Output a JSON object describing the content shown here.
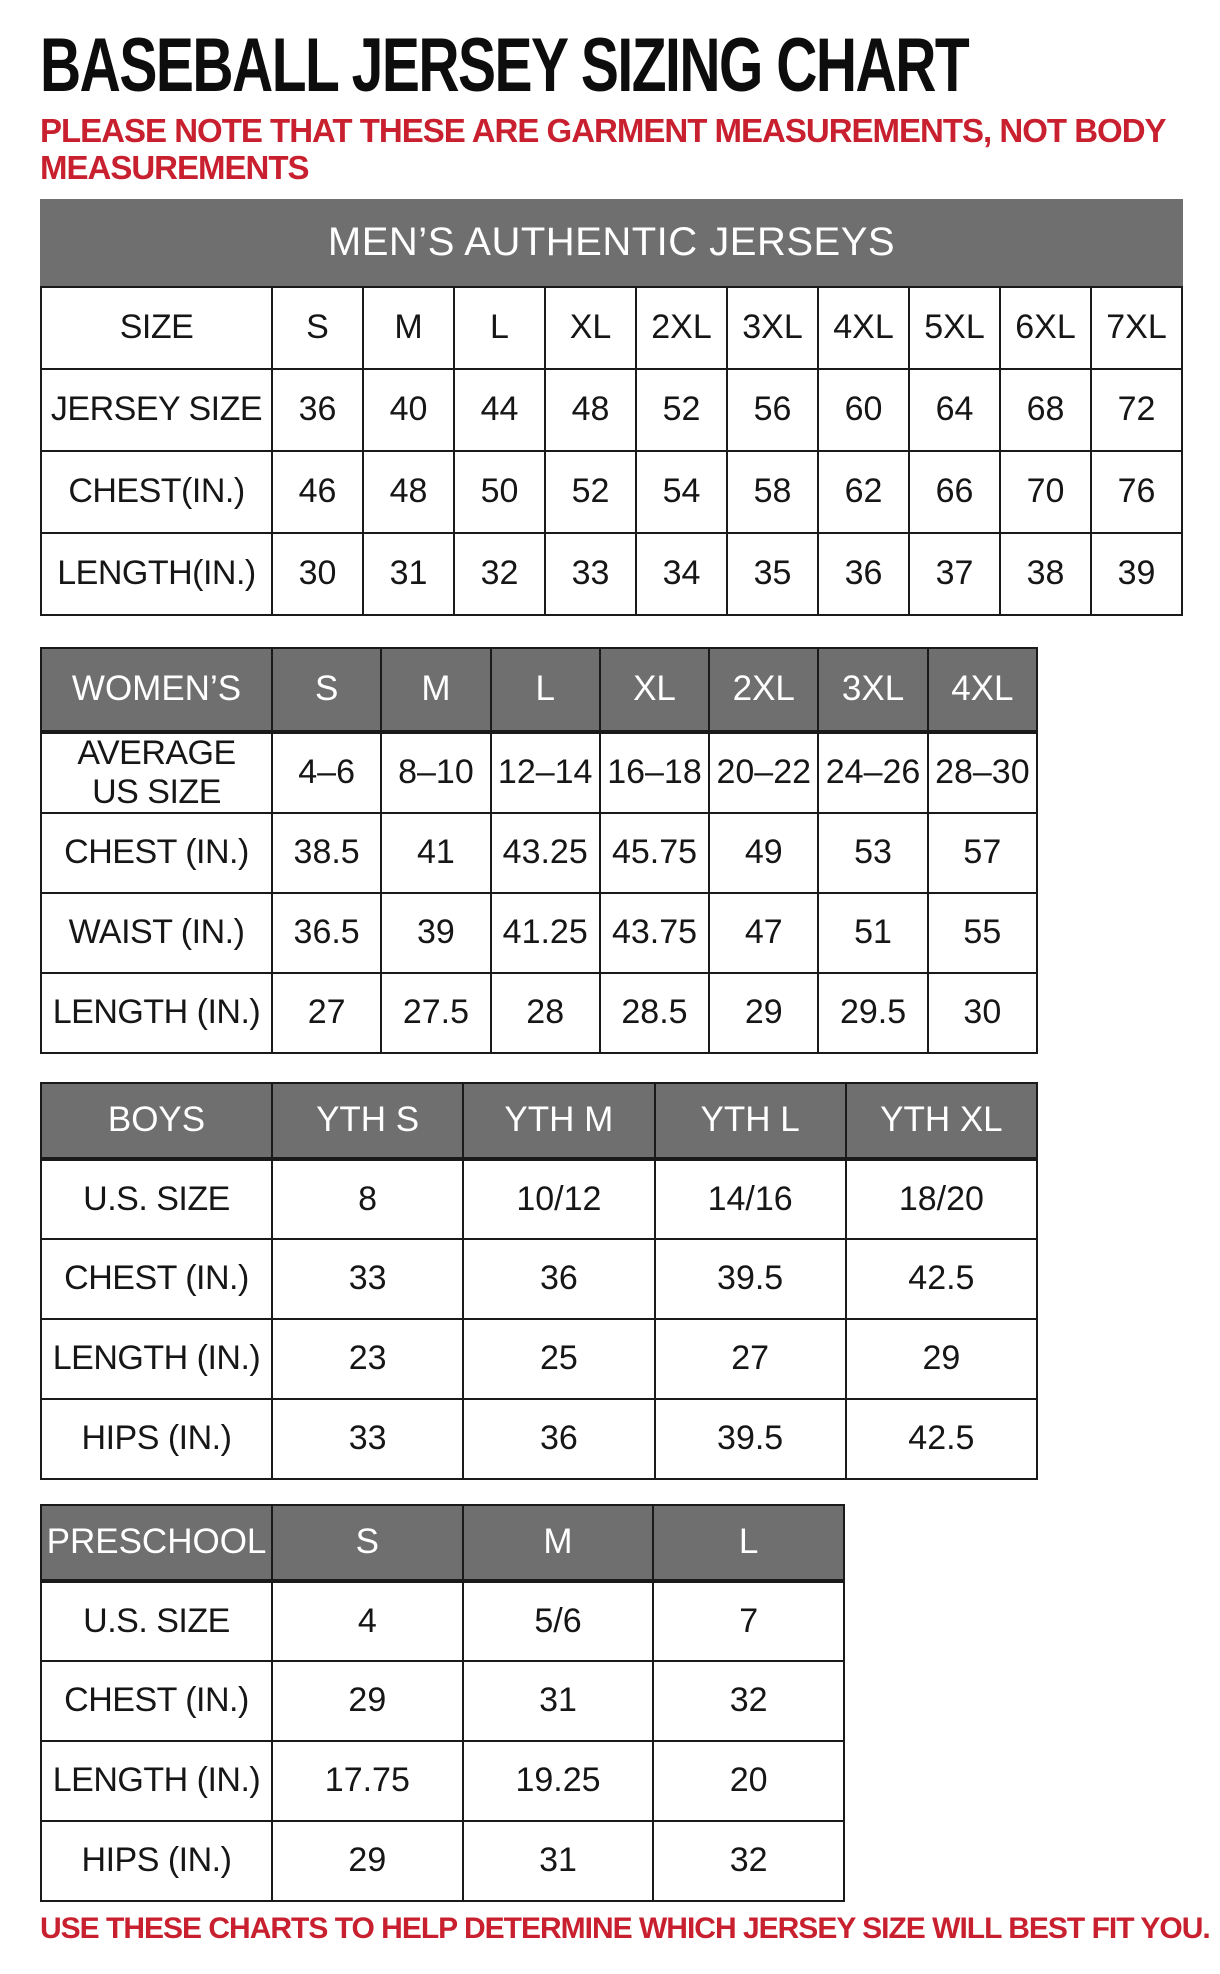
{
  "page": {
    "title": "BASEBALL JERSEY SIZING CHART",
    "note": "PLEASE NOTE THAT THESE ARE GARMENT MEASUREMENTS, NOT BODY\nMEASUREMENTS",
    "footer": "USE THESE CHARTS TO HELP DETERMINE WHICH JERSEY SIZE WILL BEST FIT YOU."
  },
  "colors": {
    "header_gray": "#6f6f6f",
    "accent_red": "#c8202f",
    "border_black": "#1a1a1a"
  },
  "tables": {
    "mens": {
      "banner": "MEN’S AUTHENTIC JERSEYS",
      "header": null,
      "rows": [
        {
          "label": "SIZE",
          "values": [
            "S",
            "M",
            "L",
            "XL",
            "2XL",
            "3XL",
            "4XL",
            "5XL",
            "6XL",
            "7XL"
          ]
        },
        {
          "label": "JERSEY SIZE",
          "values": [
            "36",
            "40",
            "44",
            "48",
            "52",
            "56",
            "60",
            "64",
            "68",
            "72"
          ]
        },
        {
          "label": "CHEST(IN.)",
          "values": [
            "46",
            "48",
            "50",
            "52",
            "54",
            "58",
            "62",
            "66",
            "70",
            "76"
          ]
        },
        {
          "label": "LENGTH(IN.)",
          "values": [
            "30",
            "31",
            "32",
            "33",
            "34",
            "35",
            "36",
            "37",
            "38",
            "39"
          ]
        }
      ]
    },
    "womens": {
      "header": {
        "label": "WOMEN’S",
        "values": [
          "S",
          "M",
          "L",
          "XL",
          "2XL",
          "3XL",
          "4XL"
        ]
      },
      "rows": [
        {
          "label": "AVERAGE\nUS SIZE",
          "values": [
            "4–6",
            "8–10",
            "12–14",
            "16–18",
            "20–22",
            "24–26",
            "28–30"
          ]
        },
        {
          "label": "CHEST (IN.)",
          "values": [
            "38.5",
            "41",
            "43.25",
            "45.75",
            "49",
            "53",
            "57"
          ]
        },
        {
          "label": "WAIST (IN.)",
          "values": [
            "36.5",
            "39",
            "41.25",
            "43.75",
            "47",
            "51",
            "55"
          ]
        },
        {
          "label": "LENGTH (IN.)",
          "values": [
            "27",
            "27.5",
            "28",
            "28.5",
            "29",
            "29.5",
            "30"
          ]
        }
      ]
    },
    "boys": {
      "header": {
        "label": "BOYS",
        "values": [
          "YTH S",
          "YTH M",
          "YTH L",
          "YTH XL"
        ]
      },
      "rows": [
        {
          "label": "U.S. SIZE",
          "values": [
            "8",
            "10/12",
            "14/16",
            "18/20"
          ]
        },
        {
          "label": "CHEST (IN.)",
          "values": [
            "33",
            "36",
            "39.5",
            "42.5"
          ]
        },
        {
          "label": "LENGTH (IN.)",
          "values": [
            "23",
            "25",
            "27",
            "29"
          ]
        },
        {
          "label": "HIPS (IN.)",
          "values": [
            "33",
            "36",
            "39.5",
            "42.5"
          ]
        }
      ]
    },
    "preschool": {
      "header": {
        "label": "PRESCHOOL",
        "values": [
          "S",
          "M",
          "L"
        ]
      },
      "rows": [
        {
          "label": "U.S. SIZE",
          "values": [
            "4",
            "5/6",
            "7"
          ]
        },
        {
          "label": "CHEST (IN.)",
          "values": [
            "29",
            "31",
            "32"
          ]
        },
        {
          "label": "LENGTH (IN.)",
          "values": [
            "17.75",
            "19.25",
            "20"
          ]
        },
        {
          "label": "HIPS (IN.)",
          "values": [
            "29",
            "31",
            "32"
          ]
        }
      ]
    }
  }
}
